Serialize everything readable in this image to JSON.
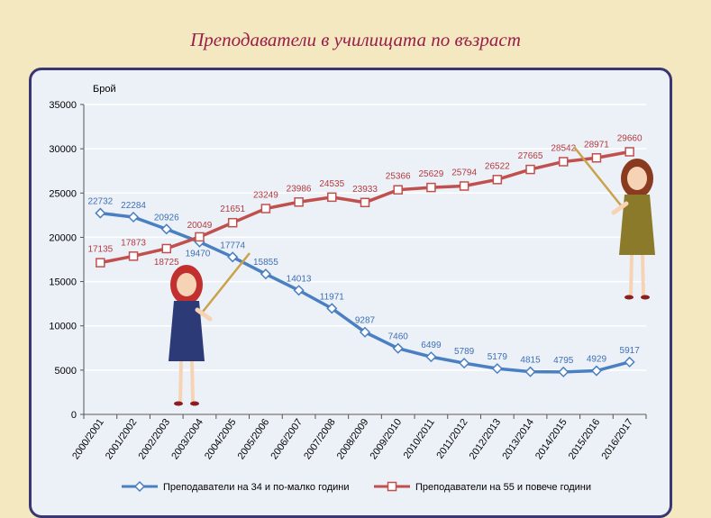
{
  "page": {
    "title": "Преподаватели в училищата по възраст"
  },
  "chart_data": {
    "type": "line",
    "ylabel": "Брой",
    "ylim": [
      0,
      35000
    ],
    "yticks": [
      0,
      5000,
      10000,
      15000,
      20000,
      25000,
      30000,
      35000
    ],
    "grid": true,
    "legend_position": "bottom",
    "categories": [
      "2000/2001",
      "2001/2002",
      "2002/2003",
      "2003/2004",
      "2004/2005",
      "2005/2006",
      "2006/2007",
      "2007/2008",
      "2008/2009",
      "2009/2010",
      "2010/2011",
      "2011/2012",
      "2012/2013",
      "2013/2014",
      "2014/2015",
      "2015/2016",
      "2016/2017"
    ],
    "series": [
      {
        "name": "Преподаватели на 34 и по-малко години",
        "color": "#4a7fc1",
        "marker": "diamond",
        "values": [
          22732,
          22284,
          20926,
          19470,
          17774,
          15855,
          14013,
          11971,
          9287,
          7460,
          6499,
          5789,
          5179,
          4815,
          4795,
          4929,
          5917
        ]
      },
      {
        "name": "Преподаватели на 55 и повече години",
        "color": "#c0504d",
        "marker": "square",
        "values": [
          17135,
          17873,
          18725,
          20049,
          21651,
          23249,
          23986,
          24535,
          23933,
          25366,
          25629,
          25794,
          26522,
          27665,
          28542,
          28971,
          29660
        ]
      }
    ]
  }
}
